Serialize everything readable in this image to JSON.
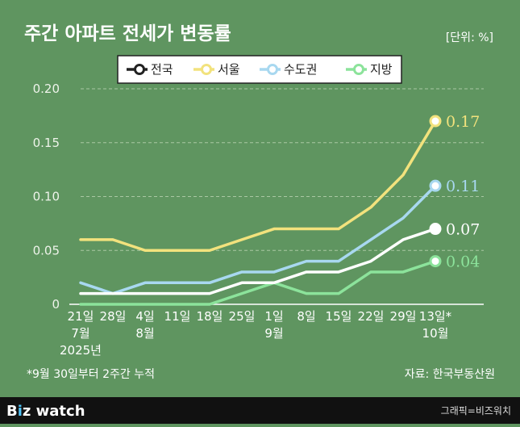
{
  "title": "주간 아파트 전세가 변동률",
  "unit_label": "[단위: %]",
  "footnote": "*9월 30일부터 2주간 누적",
  "source": "자료: 한국부동산원",
  "brand": {
    "prefix": "B",
    "i_char": "i",
    "suffix": "z watch"
  },
  "credit": "그래픽=비즈워치",
  "chart_data": {
    "type": "line",
    "title": "주간 아파트 전세가 변동률",
    "ylabel": "%",
    "ylim": [
      0,
      0.2
    ],
    "yticks": [
      "0",
      "0.05",
      "0.10",
      "0.15",
      "0.20"
    ],
    "yticks_num": [
      0,
      0.05,
      0.1,
      0.15,
      0.2
    ],
    "categories": [
      {
        "top": "21일",
        "sub": "7월",
        "sub2": "2025년"
      },
      {
        "top": "28일",
        "sub": "",
        "sub2": ""
      },
      {
        "top": "4일",
        "sub": "8월",
        "sub2": ""
      },
      {
        "top": "11일",
        "sub": "",
        "sub2": ""
      },
      {
        "top": "18일",
        "sub": "",
        "sub2": ""
      },
      {
        "top": "25일",
        "sub": "",
        "sub2": ""
      },
      {
        "top": "1일",
        "sub": "9월",
        "sub2": ""
      },
      {
        "top": "8일",
        "sub": "",
        "sub2": ""
      },
      {
        "top": "15일",
        "sub": "",
        "sub2": ""
      },
      {
        "top": "22일",
        "sub": "",
        "sub2": ""
      },
      {
        "top": "29일",
        "sub": "",
        "sub2": ""
      },
      {
        "top": "13일*",
        "sub": "10월",
        "sub2": ""
      }
    ],
    "series": [
      {
        "name": "지방",
        "color": "#8ce39b",
        "values": [
          0,
          0,
          0,
          0,
          0,
          0.01,
          0.02,
          0.01,
          0.01,
          0.03,
          0.03,
          0.04
        ],
        "end_label": "0.04"
      },
      {
        "name": "수도권",
        "color": "#a8d8f0",
        "values": [
          0.02,
          0.01,
          0.02,
          0.02,
          0.02,
          0.03,
          0.03,
          0.04,
          0.04,
          0.06,
          0.08,
          0.11
        ],
        "end_label": "0.11"
      },
      {
        "name": "전국",
        "color": "#ffffff",
        "values": [
          0.01,
          0.01,
          0.01,
          0.01,
          0.01,
          0.02,
          0.02,
          0.03,
          0.03,
          0.04,
          0.06,
          0.07
        ],
        "end_label": "0.07"
      },
      {
        "name": "서울",
        "color": "#f2e27d",
        "values": [
          0.06,
          0.06,
          0.05,
          0.05,
          0.05,
          0.06,
          0.07,
          0.07,
          0.07,
          0.09,
          0.12,
          0.17
        ],
        "end_label": "0.17"
      }
    ],
    "legend_order": [
      "전국",
      "서울",
      "수도권",
      "지방"
    ],
    "legend_position": "top-center",
    "grid": true
  }
}
